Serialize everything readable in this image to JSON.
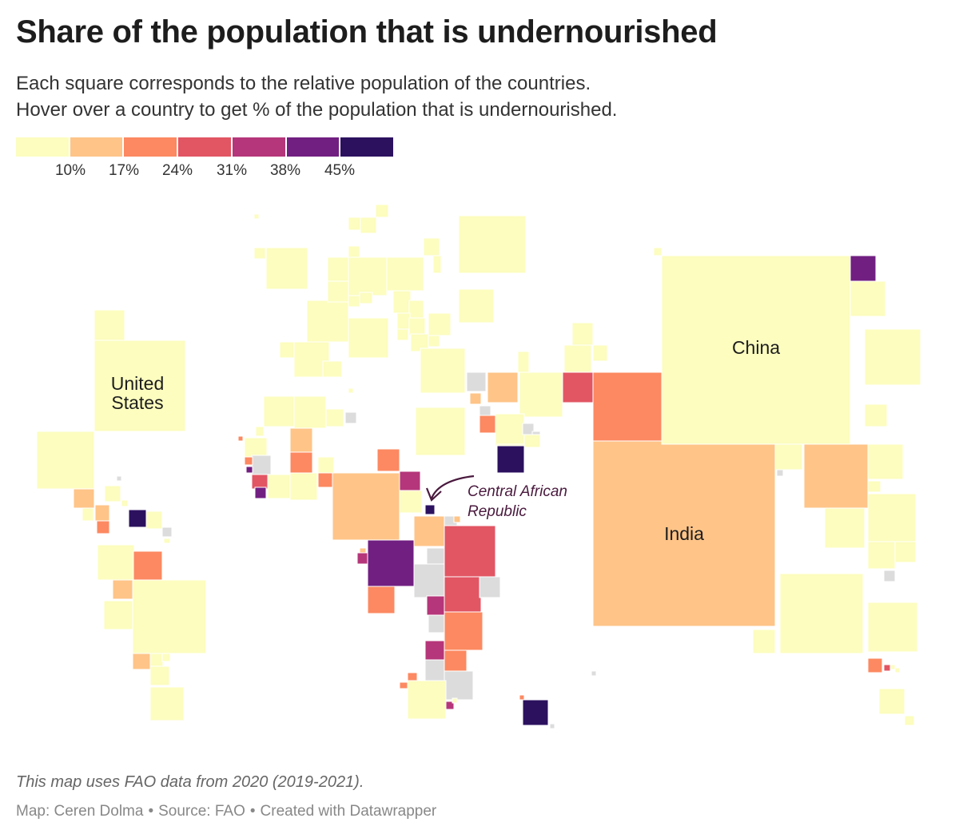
{
  "header": {
    "title": "Share of the population that is undernourished",
    "subtitle_line1": "Each square corresponds to the relative population of the countries.",
    "subtitle_line2": "Hover over a country to get % of the population that is undernourished."
  },
  "legend": {
    "colors": [
      "#fcfdbf",
      "#fec488",
      "#fc8961",
      "#e25563",
      "#b5367a",
      "#711f81",
      "#2c115f"
    ],
    "ticks": [
      "10%",
      "17%",
      "24%",
      "31%",
      "38%",
      "45%"
    ]
  },
  "colors": {
    "no_data": "#dcdcdc",
    "annotation": "#4a1a3e"
  },
  "labels": {
    "united_states_line1": "United",
    "united_states_line2": "States",
    "china": "China",
    "india": "India"
  },
  "annotation": {
    "line1": "Central African",
    "line2": "Republic"
  },
  "footer": {
    "note": "This map uses FAO data from 2020 (2019-2021).",
    "map_credit": "Map: Ceren Dolma",
    "source": "Source: FAO",
    "created_with": "Created with Datawrapper",
    "separator": "•"
  }
}
